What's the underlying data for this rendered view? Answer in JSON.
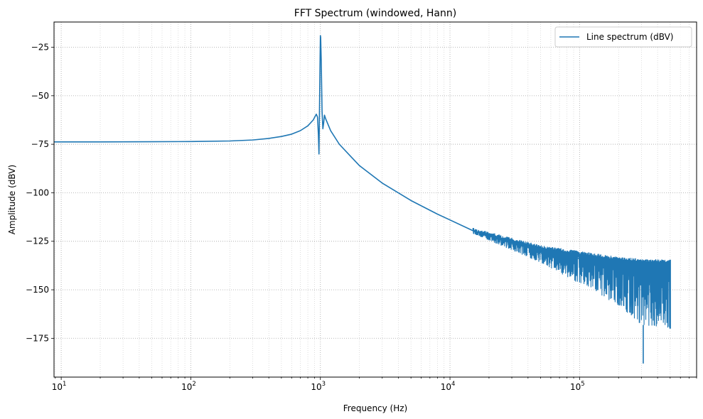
{
  "chart_data": {
    "type": "line",
    "title": "FFT Spectrum (windowed, Hann)",
    "xlabel": "Frequency (Hz)",
    "ylabel": "Amplitude (dBV)",
    "xscale": "log",
    "xlim": [
      8.8,
      800000
    ],
    "ylim": [
      -195,
      -12
    ],
    "grid": true,
    "grid_style": "dotted",
    "legend": "top-right",
    "x_ticks": [
      {
        "value": 10,
        "base": "10",
        "exp": "1"
      },
      {
        "value": 100,
        "base": "10",
        "exp": "2"
      },
      {
        "value": 1000,
        "base": "10",
        "exp": "3"
      },
      {
        "value": 10000,
        "base": "10",
        "exp": "4"
      },
      {
        "value": 100000,
        "base": "10",
        "exp": "5"
      }
    ],
    "y_ticks": [
      {
        "value": -25,
        "label": "−25"
      },
      {
        "value": -50,
        "label": "−50"
      },
      {
        "value": -75,
        "label": "−75"
      },
      {
        "value": -100,
        "label": "−100"
      },
      {
        "value": -125,
        "label": "−125"
      },
      {
        "value": -150,
        "label": "−150"
      },
      {
        "value": -175,
        "label": "−175"
      }
    ],
    "series": [
      {
        "name": "Line spectrum (dBV)",
        "color": "#1f77b4",
        "points": [
          [
            8.8,
            -73.8
          ],
          [
            20,
            -73.8
          ],
          [
            50,
            -73.7
          ],
          [
            100,
            -73.6
          ],
          [
            200,
            -73.3
          ],
          [
            300,
            -72.8
          ],
          [
            400,
            -72.0
          ],
          [
            500,
            -71.0
          ],
          [
            600,
            -69.8
          ],
          [
            700,
            -68.0
          ],
          [
            800,
            -65.5
          ],
          [
            880,
            -62.5
          ],
          [
            930,
            -59.5
          ],
          [
            950,
            -61.0
          ],
          [
            965,
            -70.0
          ],
          [
            975,
            -80.0
          ],
          [
            985,
            -55.0
          ],
          [
            995,
            -30.0
          ],
          [
            1000,
            -19.0
          ],
          [
            1005,
            -20.0
          ],
          [
            1015,
            -32.0
          ],
          [
            1030,
            -58.0
          ],
          [
            1045,
            -67.0
          ],
          [
            1060,
            -64.0
          ],
          [
            1075,
            -60.0
          ],
          [
            1100,
            -62.0
          ],
          [
            1200,
            -68.0
          ],
          [
            1400,
            -75.0
          ],
          [
            1700,
            -81.0
          ],
          [
            2000,
            -86.0
          ],
          [
            3000,
            -95.0
          ],
          [
            5000,
            -104.0
          ],
          [
            8000,
            -111.0
          ],
          [
            10000,
            -114.0
          ],
          [
            15000,
            -119.5
          ],
          [
            20000,
            -122.0
          ],
          [
            30000,
            -126.0
          ],
          [
            50000,
            -130.0
          ],
          [
            70000,
            -132.0
          ],
          [
            100000,
            -134.0
          ],
          [
            150000,
            -137.0
          ],
          [
            200000,
            -139.0
          ],
          [
            300000,
            -141.0
          ],
          [
            400000,
            -143.0
          ],
          [
            500000,
            -144.0
          ]
        ],
        "noise_band": {
          "start_hz": 15000,
          "end_hz": 500000,
          "upper_db": [
            [
              15000,
              -118
            ],
            [
              50000,
              -127
            ],
            [
              100000,
              -130
            ],
            [
              200000,
              -133
            ],
            [
              300000,
              -134
            ],
            [
              500000,
              -134.5
            ]
          ],
          "lower_db": [
            [
              15000,
              -121
            ],
            [
              50000,
              -136
            ],
            [
              100000,
              -147
            ],
            [
              200000,
              -158
            ],
            [
              300000,
              -168
            ],
            [
              500000,
              -170
            ]
          ],
          "deep_dip": {
            "x": 310000,
            "y": -188
          }
        }
      }
    ]
  }
}
